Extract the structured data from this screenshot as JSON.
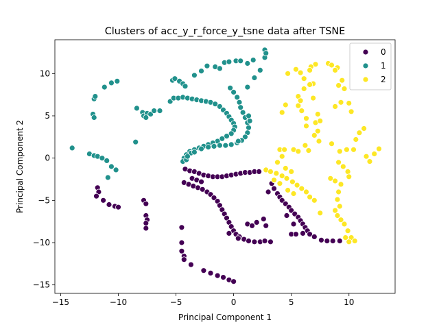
{
  "chart_data": {
    "type": "scatter",
    "title": "Clusters of acc_y_r_force_y_tsne data after TSNE",
    "xlabel": "Principal Component 1",
    "ylabel": "Principal Component 2",
    "xlim": [
      -15.5,
      14
    ],
    "ylim": [
      -16,
      14
    ],
    "xticks": [
      -15,
      -10,
      -5,
      0,
      5,
      10
    ],
    "yticks": [
      -15,
      -10,
      -5,
      0,
      5,
      10
    ],
    "grid": false,
    "legend": {
      "position": "top-right",
      "labels": [
        "0",
        "1",
        "2"
      ]
    },
    "series": [
      {
        "name": "0",
        "color": "#440154",
        "points": [
          [
            -11.8,
            -3.5
          ],
          [
            -11.7,
            -4.0
          ],
          [
            -11.9,
            -4.5
          ],
          [
            -11.3,
            -5.0
          ],
          [
            -10.8,
            -5.5
          ],
          [
            -10.3,
            -5.7
          ],
          [
            -10.0,
            -5.8
          ],
          [
            -7.8,
            -5.0
          ],
          [
            -7.6,
            -5.4
          ],
          [
            -7.6,
            -6.8
          ],
          [
            -7.5,
            -7.3
          ],
          [
            -7.6,
            -7.7
          ],
          [
            -7.6,
            -8.3
          ],
          [
            -4.5,
            -8.2
          ],
          [
            -4.5,
            -10.0
          ],
          [
            -4.5,
            -11.0
          ],
          [
            -4.3,
            -11.6
          ],
          [
            -4.3,
            -12.0
          ],
          [
            -3.7,
            -12.6
          ],
          [
            -2.6,
            -13.3
          ],
          [
            -2.0,
            -13.6
          ],
          [
            -1.4,
            -13.9
          ],
          [
            -0.9,
            -14.1
          ],
          [
            -0.4,
            -14.4
          ],
          [
            0.0,
            -14.6
          ],
          [
            -4.2,
            -1.3
          ],
          [
            -3.8,
            -1.5
          ],
          [
            -3.4,
            -1.6
          ],
          [
            -3.0,
            -1.8
          ],
          [
            -2.6,
            -2.0
          ],
          [
            -2.2,
            -2.1
          ],
          [
            -1.8,
            -2.2
          ],
          [
            -1.4,
            -2.2
          ],
          [
            -1.0,
            -2.2
          ],
          [
            -0.6,
            -2.1
          ],
          [
            -0.2,
            -2.0
          ],
          [
            0.2,
            -1.9
          ],
          [
            0.6,
            -1.8
          ],
          [
            1.0,
            -1.7
          ],
          [
            1.4,
            -1.7
          ],
          [
            1.8,
            -1.6
          ],
          [
            2.2,
            -1.6
          ],
          [
            -3.6,
            -2.4
          ],
          [
            -3.2,
            -2.6
          ],
          [
            -2.8,
            -2.8
          ],
          [
            -4.3,
            -2.9
          ],
          [
            -3.9,
            -3.1
          ],
          [
            -3.5,
            -3.3
          ],
          [
            -3.1,
            -3.5
          ],
          [
            -2.7,
            -3.7
          ],
          [
            -2.3,
            -4.0
          ],
          [
            -2.0,
            -4.3
          ],
          [
            -1.7,
            -4.7
          ],
          [
            -1.4,
            -5.1
          ],
          [
            -1.2,
            -5.6
          ],
          [
            -1.0,
            -6.1
          ],
          [
            -0.8,
            -6.6
          ],
          [
            -0.6,
            -7.1
          ],
          [
            -0.4,
            -7.6
          ],
          [
            -0.2,
            -8.1
          ],
          [
            0.0,
            -8.6
          ],
          [
            0.2,
            -9.0
          ],
          [
            0.5,
            -9.3
          ],
          [
            0.9,
            -9.6
          ],
          [
            1.3,
            -9.8
          ],
          [
            1.8,
            -9.9
          ],
          [
            2.3,
            -9.9
          ],
          [
            2.7,
            -9.8
          ],
          [
            3.2,
            -9.9
          ],
          [
            -0.4,
            -8.9
          ],
          [
            0.4,
            -9.5
          ],
          [
            1.2,
            -7.8
          ],
          [
            1.6,
            -8.0
          ],
          [
            2.0,
            -7.6
          ],
          [
            2.6,
            -7.2
          ],
          [
            2.8,
            -8.0
          ],
          [
            3.3,
            -3.0
          ],
          [
            3.5,
            -3.6
          ],
          [
            3.8,
            -4.2
          ],
          [
            4.0,
            -4.6
          ],
          [
            4.2,
            -5.0
          ],
          [
            4.5,
            -5.4
          ],
          [
            4.8,
            -5.8
          ],
          [
            5.0,
            -6.2
          ],
          [
            5.3,
            -6.6
          ],
          [
            5.6,
            -7.0
          ],
          [
            5.8,
            -7.4
          ],
          [
            6.0,
            -7.8
          ],
          [
            6.2,
            -8.2
          ],
          [
            6.4,
            -8.6
          ],
          [
            6.6,
            -9.0
          ],
          [
            7.0,
            -9.3
          ],
          [
            5.0,
            -9.0
          ],
          [
            5.4,
            -9.0
          ],
          [
            6.0,
            -8.9
          ],
          [
            7.6,
            -9.7
          ],
          [
            8.1,
            -9.8
          ],
          [
            8.6,
            -9.8
          ],
          [
            9.2,
            -9.8
          ],
          [
            3.0,
            -4.0
          ],
          [
            4.6,
            -6.8
          ],
          [
            5.2,
            -7.8
          ]
        ]
      },
      {
        "name": "1",
        "color": "#21918c",
        "points": [
          [
            -14.0,
            1.2
          ],
          [
            -12.5,
            0.5
          ],
          [
            -12.1,
            0.3
          ],
          [
            -11.8,
            0.2
          ],
          [
            -11.4,
            0.0
          ],
          [
            -11.0,
            -0.3
          ],
          [
            -10.6,
            -1.0
          ],
          [
            -10.2,
            -1.4
          ],
          [
            -10.9,
            -2.3
          ],
          [
            -12.2,
            5.2
          ],
          [
            -12.1,
            4.8
          ],
          [
            -12.1,
            7.0
          ],
          [
            -12.0,
            7.3
          ],
          [
            -11.2,
            8.4
          ],
          [
            -10.6,
            8.9
          ],
          [
            -10.1,
            9.1
          ],
          [
            -8.5,
            1.9
          ],
          [
            -8.4,
            5.9
          ],
          [
            -7.9,
            5.4
          ],
          [
            -7.8,
            5.0
          ],
          [
            -7.5,
            5.3
          ],
          [
            -7.2,
            5.2
          ],
          [
            -6.9,
            5.6
          ],
          [
            -6.4,
            5.6
          ],
          [
            -7.6,
            4.8
          ],
          [
            -5.5,
            6.7
          ],
          [
            -5.2,
            7.1
          ],
          [
            -4.8,
            7.1
          ],
          [
            -4.4,
            7.2
          ],
          [
            -4.0,
            7.1
          ],
          [
            -5.3,
            9.2
          ],
          [
            -5.1,
            9.4
          ],
          [
            -4.7,
            9.1
          ],
          [
            -4.4,
            8.8
          ],
          [
            -4.2,
            8.5
          ],
          [
            -3.4,
            9.8
          ],
          [
            -2.8,
            10.3
          ],
          [
            -2.3,
            10.9
          ],
          [
            -1.6,
            10.8
          ],
          [
            -1.2,
            10.6
          ],
          [
            -0.8,
            11.3
          ],
          [
            -0.4,
            11.4
          ],
          [
            0.2,
            11.5
          ],
          [
            0.6,
            11.5
          ],
          [
            1.2,
            11.2
          ],
          [
            1.7,
            11.6
          ],
          [
            1.2,
            8.4
          ],
          [
            1.8,
            9.5
          ],
          [
            2.3,
            10.4
          ],
          [
            2.7,
            11.9
          ],
          [
            2.7,
            12.8
          ],
          [
            2.8,
            12.4
          ],
          [
            -3.6,
            7.0
          ],
          [
            -3.2,
            6.9
          ],
          [
            -2.8,
            6.8
          ],
          [
            -2.4,
            6.7
          ],
          [
            -2.0,
            6.6
          ],
          [
            -1.6,
            6.4
          ],
          [
            -1.2,
            6.1
          ],
          [
            -0.9,
            5.7
          ],
          [
            -0.6,
            5.3
          ],
          [
            -0.4,
            4.9
          ],
          [
            -0.2,
            4.5
          ],
          [
            0.0,
            4.1
          ],
          [
            0.1,
            3.7
          ],
          [
            0.0,
            3.3
          ],
          [
            -0.2,
            2.9
          ],
          [
            -0.6,
            2.6
          ],
          [
            -1.0,
            2.3
          ],
          [
            -1.4,
            2.0
          ],
          [
            -1.8,
            1.8
          ],
          [
            -2.2,
            1.6
          ],
          [
            -2.6,
            1.4
          ],
          [
            -3.0,
            1.2
          ],
          [
            -3.4,
            1.0
          ],
          [
            -3.8,
            0.8
          ],
          [
            -4.1,
            0.4
          ],
          [
            -4.3,
            0.0
          ],
          [
            -4.4,
            -0.4
          ],
          [
            -4.1,
            -0.2
          ],
          [
            -3.7,
            0.6
          ],
          [
            -0.3,
            8.3
          ],
          [
            0.0,
            7.8
          ],
          [
            0.3,
            7.2
          ],
          [
            0.5,
            6.6
          ],
          [
            0.6,
            6.0
          ],
          [
            0.8,
            5.4
          ],
          [
            1.0,
            4.8
          ],
          [
            1.2,
            4.2
          ],
          [
            1.3,
            3.6
          ],
          [
            1.2,
            3.0
          ],
          [
            1.0,
            2.5
          ],
          [
            0.7,
            2.1
          ],
          [
            0.3,
            1.8
          ],
          [
            -0.2,
            1.6
          ],
          [
            -0.7,
            1.5
          ],
          [
            -1.2,
            1.5
          ],
          [
            -1.7,
            1.4
          ],
          [
            -2.2,
            1.3
          ],
          [
            -2.8,
            1.1
          ],
          [
            -3.4,
            0.7
          ],
          [
            -4.0,
            0.2
          ],
          [
            1.4,
            4.4
          ],
          [
            1.3,
            5.0
          ],
          [
            0.4,
            2.0
          ]
        ]
      },
      {
        "name": "2",
        "color": "#fde725",
        "points": [
          [
            7.1,
            11.1
          ],
          [
            6.7,
            10.8
          ],
          [
            6.6,
            10.4
          ],
          [
            5.8,
            10.1
          ],
          [
            5.4,
            10.5
          ],
          [
            4.7,
            10.0
          ],
          [
            6.1,
            9.4
          ],
          [
            6.9,
            8.8
          ],
          [
            6.6,
            8.7
          ],
          [
            6.1,
            8.2
          ],
          [
            5.6,
            7.3
          ],
          [
            5.8,
            6.8
          ],
          [
            6.9,
            7.1
          ],
          [
            5.6,
            6.2
          ],
          [
            5.9,
            5.6
          ],
          [
            6.3,
            4.7
          ],
          [
            7.1,
            4.2
          ],
          [
            6.3,
            3.8
          ],
          [
            7.3,
            3.2
          ],
          [
            7.0,
            2.7
          ],
          [
            7.4,
            2.0
          ],
          [
            6.2,
            1.5
          ],
          [
            6.5,
            0.9
          ],
          [
            4.5,
            6.3
          ],
          [
            4.2,
            5.4
          ],
          [
            8.2,
            11.2
          ],
          [
            8.5,
            11.0
          ],
          [
            9.0,
            10.7
          ],
          [
            8.8,
            10.4
          ],
          [
            9.4,
            9.2
          ],
          [
            9.1,
            8.6
          ],
          [
            9.6,
            8.2
          ],
          [
            10.0,
            6.5
          ],
          [
            10.2,
            5.5
          ],
          [
            8.8,
            6.1
          ],
          [
            9.3,
            6.6
          ],
          [
            7.3,
            5.2
          ],
          [
            7.5,
            4.4
          ],
          [
            11.3,
            3.5
          ],
          [
            10.9,
            3.0
          ],
          [
            10.6,
            2.2
          ],
          [
            10.4,
            1.0
          ],
          [
            9.8,
            1.0
          ],
          [
            9.2,
            0.8
          ],
          [
            8.5,
            1.7
          ],
          [
            12.2,
            0.5
          ],
          [
            11.5,
            0.2
          ],
          [
            12.6,
            1.1
          ],
          [
            11.8,
            -0.4
          ],
          [
            9.1,
            -0.5
          ],
          [
            9.5,
            -1.0
          ],
          [
            9.9,
            -1.6
          ],
          [
            10.0,
            -2.2
          ],
          [
            9.3,
            -3.1
          ],
          [
            8.8,
            -2.7
          ],
          [
            8.4,
            -2.4
          ],
          [
            9.1,
            -4.0
          ],
          [
            9.0,
            -4.9
          ],
          [
            9.2,
            -5.7
          ],
          [
            8.8,
            -6.2
          ],
          [
            9.0,
            -6.8
          ],
          [
            9.3,
            -7.3
          ],
          [
            9.6,
            -7.8
          ],
          [
            9.9,
            -8.6
          ],
          [
            10.2,
            -9.4
          ],
          [
            10.5,
            -9.8
          ],
          [
            10.0,
            -9.9
          ],
          [
            9.7,
            -9.4
          ],
          [
            7.5,
            -6.5
          ],
          [
            2.8,
            -1.4
          ],
          [
            3.2,
            -1.6
          ],
          [
            3.7,
            -1.8
          ],
          [
            4.2,
            -2.1
          ],
          [
            4.6,
            -2.4
          ],
          [
            5.1,
            -2.8
          ],
          [
            5.5,
            -3.2
          ],
          [
            5.9,
            -3.6
          ],
          [
            6.3,
            -4.0
          ],
          [
            6.6,
            -4.6
          ],
          [
            7.0,
            -5.0
          ],
          [
            3.5,
            -2.6
          ],
          [
            4.0,
            -3.0
          ],
          [
            4.7,
            -3.8
          ],
          [
            5.2,
            -4.2
          ],
          [
            4.0,
            1.0
          ],
          [
            4.4,
            1.0
          ],
          [
            5.2,
            1.0
          ],
          [
            5.6,
            0.8
          ],
          [
            4.2,
            0.2
          ],
          [
            3.8,
            -0.5
          ],
          [
            4.5,
            -1.2
          ],
          [
            5.0,
            -1.6
          ]
        ]
      }
    ]
  }
}
